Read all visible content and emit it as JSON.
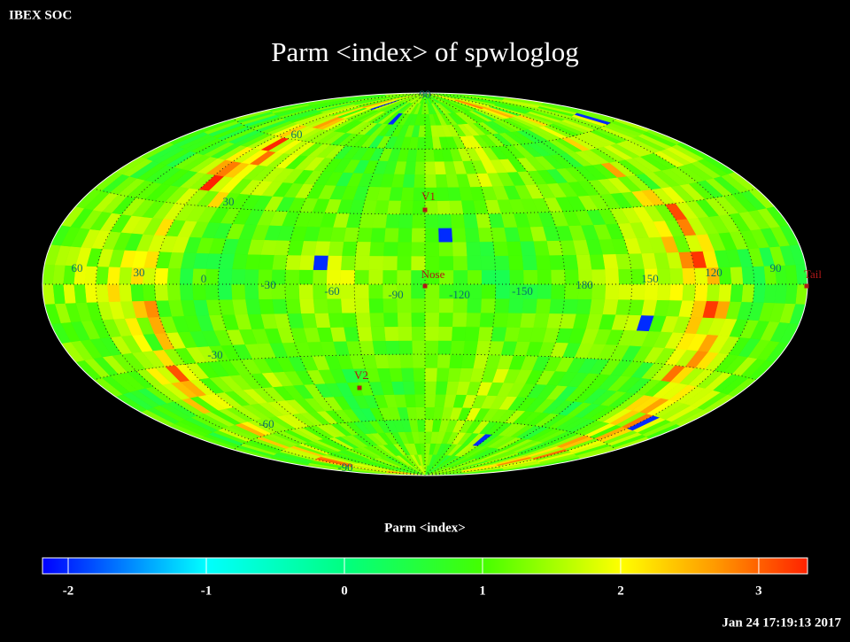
{
  "header": {
    "source": "IBEX SOC",
    "title": "Parm  <index> of spwloglog"
  },
  "map": {
    "grid_labels": [
      "90",
      "60",
      "30",
      "60",
      "30",
      "0",
      "-30",
      "-60",
      "-90",
      "-120",
      "-150",
      "180",
      "150",
      "120",
      "90",
      "-30",
      "-60",
      "-90"
    ],
    "markers": [
      "V1",
      "Nose",
      "V2",
      "Tail"
    ]
  },
  "colorbar": {
    "label": "Parm  <index>",
    "lim": [
      -2.186,
      3.353
    ],
    "ticks": [
      -2,
      -1,
      0,
      1,
      2,
      3
    ]
  },
  "footer": {
    "timestamp": "Jan 24 17:19:13 2017"
  }
}
